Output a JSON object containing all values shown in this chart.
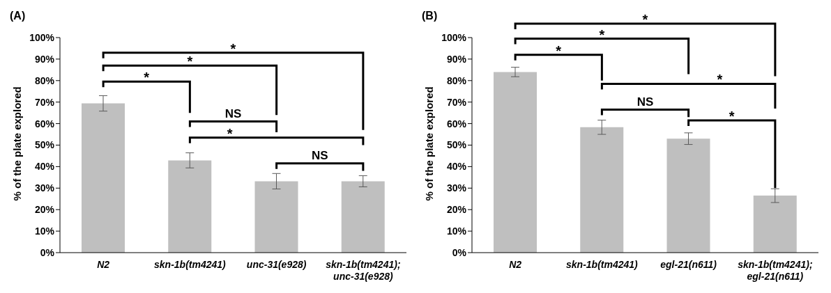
{
  "chart_data": [
    {
      "type": "bar",
      "title": "(A)",
      "ylabel": "% of the plate explored",
      "categories": [
        "N2",
        "skn-1b(tm4241)",
        "unc-31(e928)",
        "skn-1b(tm4241); unc-31(e928)"
      ],
      "values": [
        69.4,
        42.9,
        33.2,
        33.2
      ],
      "errors": [
        3.6,
        3.5,
        3.6,
        2.6
      ],
      "color": "#bfbfbf",
      "ylim": [
        0,
        100
      ],
      "yticks": [
        {
          "value": 0,
          "label": "0%"
        },
        {
          "value": 10,
          "label": "10%"
        },
        {
          "value": 20,
          "label": "20%"
        },
        {
          "value": 30,
          "label": "30%"
        },
        {
          "value": 40,
          "label": "40%"
        },
        {
          "value": 50,
          "label": "50%"
        },
        {
          "value": 60,
          "label": "60%"
        },
        {
          "value": 70,
          "label": "70%"
        },
        {
          "value": 80,
          "label": "80%"
        },
        {
          "value": 90,
          "label": "90%"
        },
        {
          "value": 100,
          "label": "100%"
        }
      ],
      "grid": false,
      "legend": false,
      "annotations": [
        "*",
        "*",
        "*",
        "NS",
        "*",
        "NS"
      ]
    },
    {
      "type": "bar",
      "title": "(B)",
      "ylabel": "% of the plate explored",
      "categories": [
        "N2",
        "skn-1b(tm4241)",
        "egl-21(n611)",
        "skn-1b(tm4241); egl-21(n611)"
      ],
      "values": [
        84.0,
        58.3,
        53.0,
        26.5
      ],
      "errors": [
        2.2,
        3.3,
        2.7,
        3.2
      ],
      "color": "#bfbfbf",
      "ylim": [
        0,
        100
      ],
      "yticks": [
        {
          "value": 0,
          "label": "0%"
        },
        {
          "value": 10,
          "label": "10%"
        },
        {
          "value": 20,
          "label": "20%"
        },
        {
          "value": 30,
          "label": "30%"
        },
        {
          "value": 40,
          "label": "40%"
        },
        {
          "value": 50,
          "label": "50%"
        },
        {
          "value": 60,
          "label": "60%"
        },
        {
          "value": 70,
          "label": "70%"
        },
        {
          "value": 80,
          "label": "80%"
        },
        {
          "value": 90,
          "label": "90%"
        },
        {
          "value": 100,
          "label": "100%"
        }
      ],
      "grid": false,
      "legend": false,
      "annotations": [
        "*",
        "*",
        "*",
        "*",
        "NS",
        "*"
      ]
    }
  ]
}
